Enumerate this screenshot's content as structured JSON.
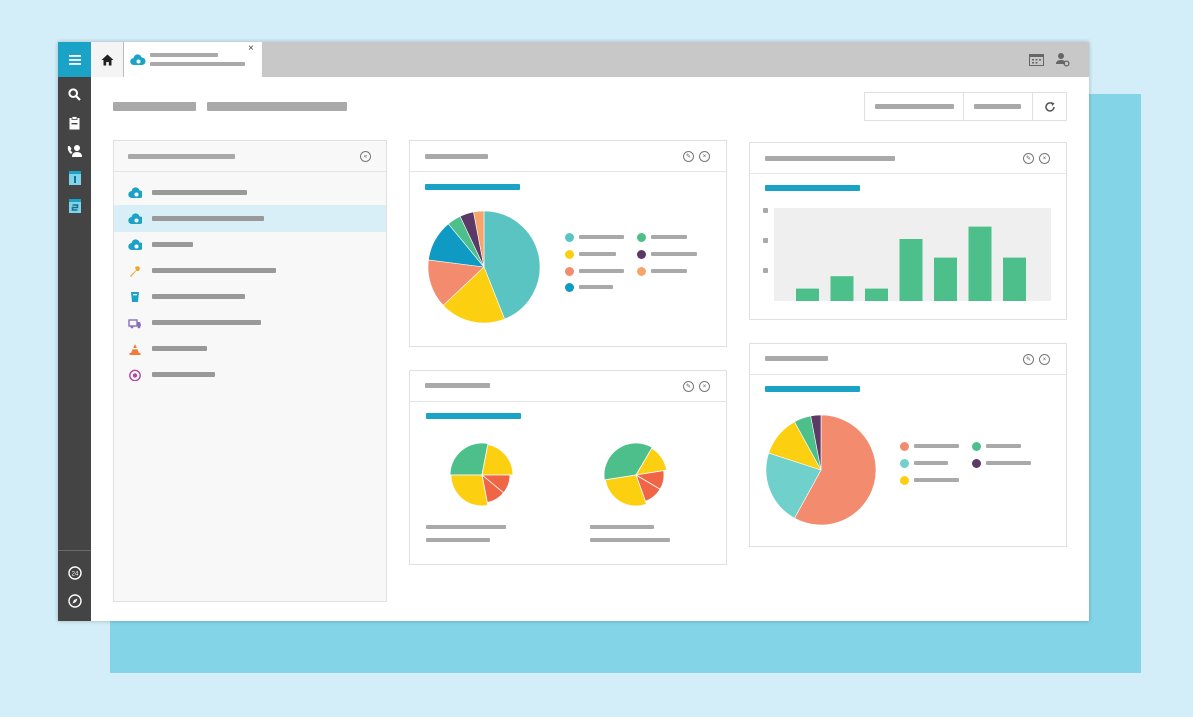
{
  "sidebar": {
    "items": [
      {
        "icon": "search-icon"
      },
      {
        "icon": "clipboard-icon"
      },
      {
        "icon": "phone-user-icon"
      },
      {
        "icon": "calendar-1-icon"
      },
      {
        "icon": "calendar-2-icon"
      }
    ],
    "bottom_items": [
      {
        "icon": "clock-icon"
      },
      {
        "icon": "compass-icon"
      }
    ]
  },
  "topbar": {
    "home_icon": "home-icon",
    "tab_icon": "cloud-icon",
    "tab_close": "×",
    "right_icons": [
      "calendar-grid-icon",
      "user-settings-icon"
    ]
  },
  "toolbar": {
    "refresh_icon": "refresh-icon"
  },
  "list": {
    "items": [
      {
        "icon": "cloud-icon",
        "color": "#1aa2c7",
        "active": false
      },
      {
        "icon": "cloud-icon",
        "color": "#1aa2c7",
        "active": true
      },
      {
        "icon": "cloud-icon",
        "color": "#1aa2c7",
        "active": false
      },
      {
        "icon": "wrench-icon",
        "color": "#f5a623",
        "active": false
      },
      {
        "icon": "bucket-icon",
        "color": "#1aa2c7",
        "active": false
      },
      {
        "icon": "truck-icon",
        "color": "#8a6fb8",
        "active": false
      },
      {
        "icon": "cone-icon",
        "color": "#f07a3a",
        "active": false
      },
      {
        "icon": "target-icon",
        "color": "#b04a9a",
        "active": false
      }
    ]
  },
  "colors": {
    "accent": "#1aa2c7",
    "teal": "#59c4c2",
    "yellow": "#fdcf11",
    "salmon": "#f38b6e",
    "blue": "#0f9ac4",
    "green": "#4cbf8a",
    "purple": "#5b3a67",
    "orange": "#f7a46a",
    "red": "#ef6545"
  },
  "chart_data": [
    {
      "type": "pie",
      "values": [
        44,
        19,
        14,
        12,
        4,
        4,
        3
      ],
      "colors": [
        "#59c4c2",
        "#fdcf11",
        "#f38b6e",
        "#0f9ac4",
        "#4cbf8a",
        "#5b3a67",
        "#f7a46a"
      ]
    },
    {
      "type": "bar",
      "values": [
        1,
        2,
        1,
        5,
        3.5,
        6,
        3.5
      ],
      "ylim": [
        0,
        7.5
      ],
      "color": "#4cbf8a"
    },
    {
      "type": "pie",
      "values": [
        28,
        22,
        11,
        11,
        28
      ],
      "colors": [
        "#4cbf8a",
        "#fdcf11",
        "#ef6545",
        "#ef6545",
        "#fdcf11"
      ]
    },
    {
      "type": "pie",
      "values": [
        36,
        14,
        11,
        11,
        28
      ],
      "colors": [
        "#4cbf8a",
        "#fdcf11",
        "#ef6545",
        "#ef6545",
        "#fdcf11"
      ]
    },
    {
      "type": "pie",
      "values": [
        58,
        22,
        12,
        5,
        3
      ],
      "colors": [
        "#f38b6e",
        "#6fd0cc",
        "#fdcf11",
        "#4cbf8a",
        "#5b3a67"
      ]
    }
  ]
}
